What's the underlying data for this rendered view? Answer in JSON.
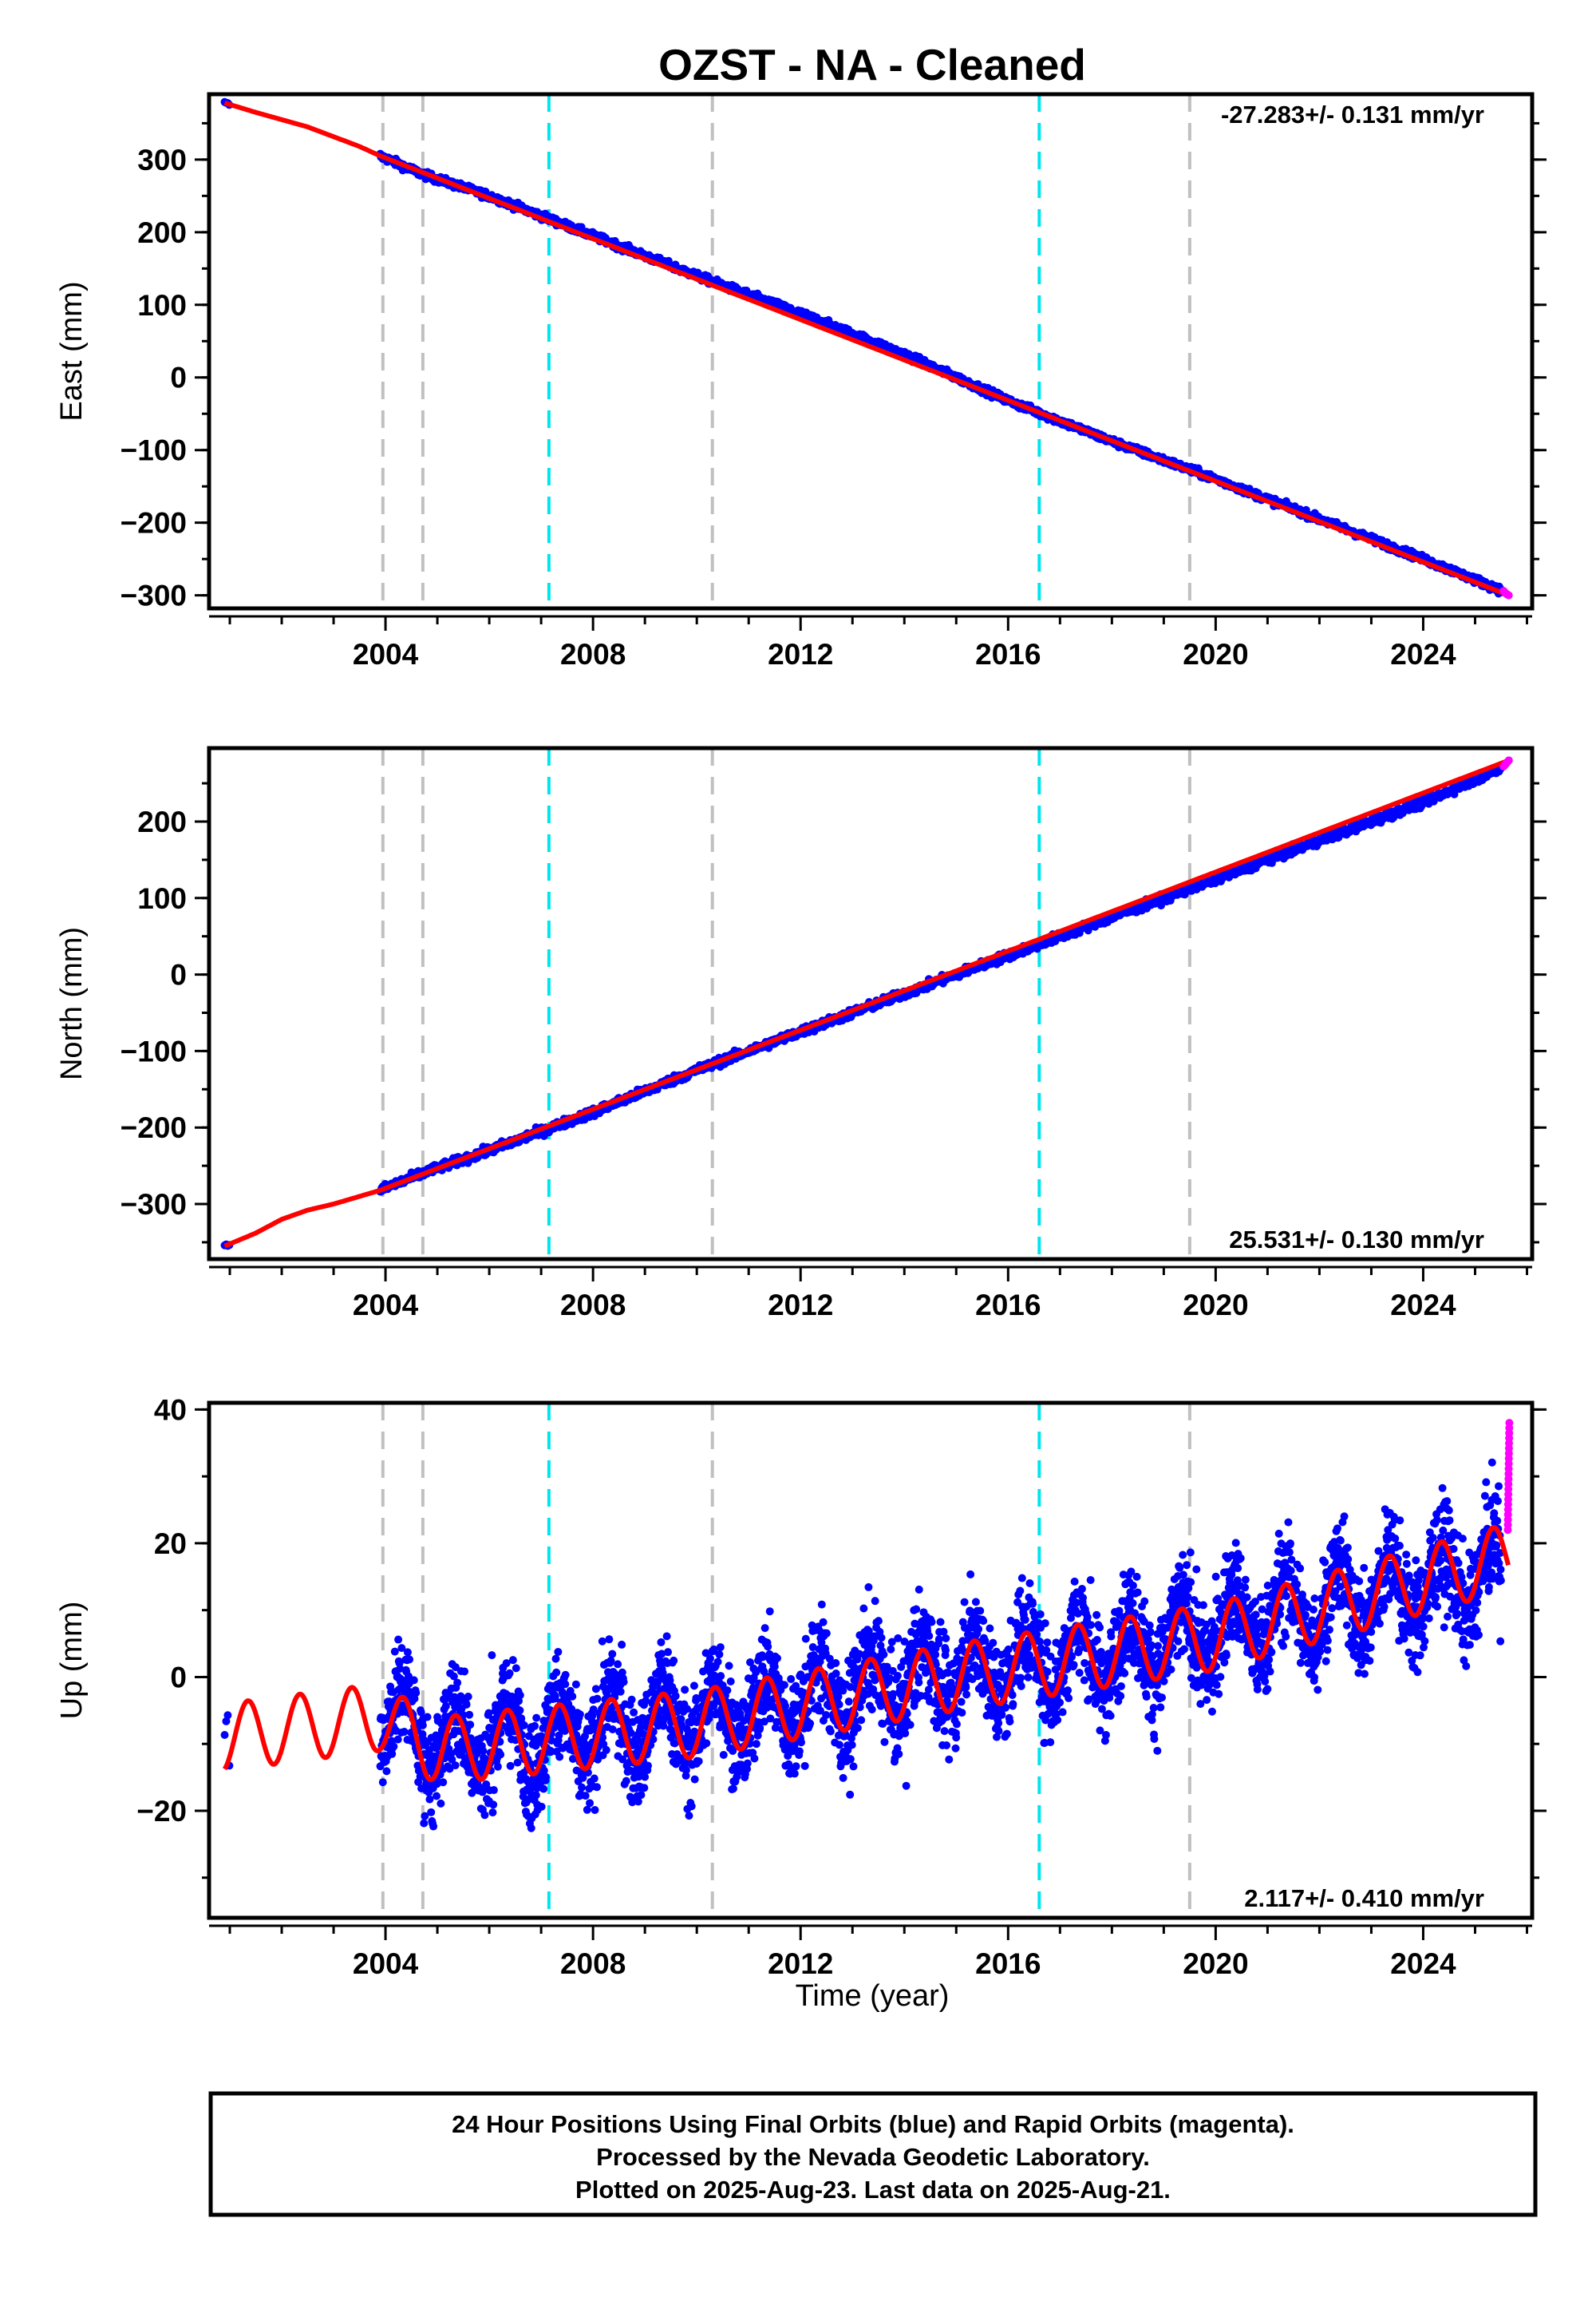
{
  "title": "OZST  - NA - Cleaned",
  "colors": {
    "final_orbits": "#0000ff",
    "rapid_orbits": "#ff00ff",
    "model_fit": "#ff0000",
    "equipment_change_line": "#c0c0c0",
    "earthquake_line": "#00e5ee"
  },
  "chart_data": [
    {
      "type": "scatter",
      "component": "East",
      "ylabel": "East (mm)",
      "xlim": [
        2000.6,
        2026.1
      ],
      "ylim": [
        -318,
        390
      ],
      "yticks": [
        300,
        200,
        100,
        0,
        -100,
        -200,
        -300
      ],
      "ytick_labels": [
        "300",
        "200",
        "100",
        "0",
        "−100",
        "−200",
        "−300"
      ],
      "xticks": [
        2004,
        2008,
        2012,
        2016,
        2020,
        2024
      ],
      "xtick_labels": [
        "2004",
        "2008",
        "2012",
        "2016",
        "2020",
        "2024"
      ],
      "rate_label": "-27.283+/- 0.131 mm/yr",
      "rate_position": "top-right",
      "series": [
        {
          "role": "final_orbits",
          "x": [
            2000.9,
            2003.9,
            2004.7,
            2006.0,
            2008.0,
            2010.0,
            2012.0,
            2014.0,
            2016.0,
            2018.0,
            2020.0,
            2022.0,
            2024.0,
            2025.5
          ],
          "y": [
            378,
            305,
            280,
            250,
            195,
            140,
            88,
            32,
            -32,
            -88,
            -140,
            -195,
            -250,
            -293
          ]
        },
        {
          "role": "rapid_orbits",
          "x": [
            2025.55,
            2025.6,
            2025.65
          ],
          "y": [
            -294,
            -298,
            -300
          ]
        },
        {
          "role": "model_fit",
          "x": [
            2000.9,
            2001.5,
            2002.5,
            2003.5,
            2003.9,
            2025.65
          ],
          "y": [
            378,
            365,
            345,
            318,
            305,
            -300
          ]
        }
      ],
      "grid": false
    },
    {
      "type": "scatter",
      "component": "North",
      "ylabel": "North (mm)",
      "xlim": [
        2000.6,
        2026.1
      ],
      "ylim": [
        -372,
        296
      ],
      "yticks": [
        200,
        100,
        0,
        -100,
        -200,
        -300
      ],
      "ytick_labels": [
        "200",
        "100",
        "0",
        "−100",
        "−200",
        "−300"
      ],
      "xticks": [
        2004,
        2008,
        2012,
        2016,
        2020,
        2024
      ],
      "xtick_labels": [
        "2004",
        "2008",
        "2012",
        "2016",
        "2020",
        "2024"
      ],
      "rate_label": "25.531+/- 0.130 mm/yr",
      "rate_position": "bottom-right",
      "series": [
        {
          "role": "final_orbits",
          "x": [
            2000.9,
            2003.9,
            2004.7,
            2006.0,
            2008.0,
            2010.0,
            2012.0,
            2014.0,
            2016.0,
            2018.0,
            2020.0,
            2022.0,
            2024.0,
            2025.5
          ],
          "y": [
            -355,
            -282,
            -260,
            -230,
            -180,
            -125,
            -75,
            -25,
            25,
            75,
            125,
            175,
            225,
            270
          ]
        },
        {
          "role": "rapid_orbits",
          "x": [
            2025.55,
            2025.6,
            2025.65
          ],
          "y": [
            272,
            276,
            280
          ]
        },
        {
          "role": "model_fit",
          "x": [
            2000.9,
            2001.5,
            2002.0,
            2002.5,
            2003.0,
            2003.9,
            2025.65
          ],
          "y": [
            -355,
            -338,
            -320,
            -308,
            -300,
            -282,
            280
          ]
        }
      ],
      "grid": false
    },
    {
      "type": "scatter",
      "component": "Up",
      "ylabel": "Up (mm)",
      "xlabel": "Time (year)",
      "xlim": [
        2000.6,
        2026.1
      ],
      "ylim": [
        -36,
        41
      ],
      "yticks": [
        40,
        20,
        0,
        -20
      ],
      "ytick_labels": [
        "40",
        "20",
        "0",
        "−20"
      ],
      "xticks": [
        2004,
        2008,
        2012,
        2016,
        2020,
        2024
      ],
      "xtick_labels": [
        "2004",
        "2008",
        "2012",
        "2016",
        "2020",
        "2024"
      ],
      "rate_label": "2.117+/- 0.410 mm/yr",
      "rate_position": "bottom-right",
      "series": [
        {
          "role": "final_orbits",
          "x": [
            2000.9,
            2003.9,
            2005.0,
            2007.0,
            2009.0,
            2011.0,
            2013.0,
            2015.0,
            2017.0,
            2019.0,
            2021.0,
            2023.0,
            2025.5
          ],
          "y": [
            -8,
            -5,
            -10,
            -9,
            -7,
            -5,
            -2,
            1,
            3,
            5,
            9,
            12,
            16
          ]
        },
        {
          "role": "rapid_orbits",
          "x": [
            2025.55,
            2025.6,
            2025.65
          ],
          "y": [
            22,
            30,
            38
          ]
        },
        {
          "role": "model_fit",
          "x": [
            2000.9,
            2003.9,
            2005.0,
            2010.0,
            2015.0,
            2020.0,
            2025.65
          ],
          "y": [
            -9,
            -6,
            -11,
            -7,
            0,
            6,
            18
          ]
        }
      ],
      "grid": false
    }
  ],
  "vertical_lines": {
    "equipment_change_years": [
      2003.95,
      2004.72,
      2010.3,
      2019.5
    ],
    "earthquake_years": [
      2007.15,
      2016.6
    ]
  },
  "footer": {
    "line1": "24 Hour Positions Using Final Orbits (blue) and Rapid Orbits (magenta).",
    "line2": "Processed by the Nevada Geodetic Laboratory.",
    "line3": "Plotted on 2025-Aug-23. Last data on 2025-Aug-21."
  }
}
